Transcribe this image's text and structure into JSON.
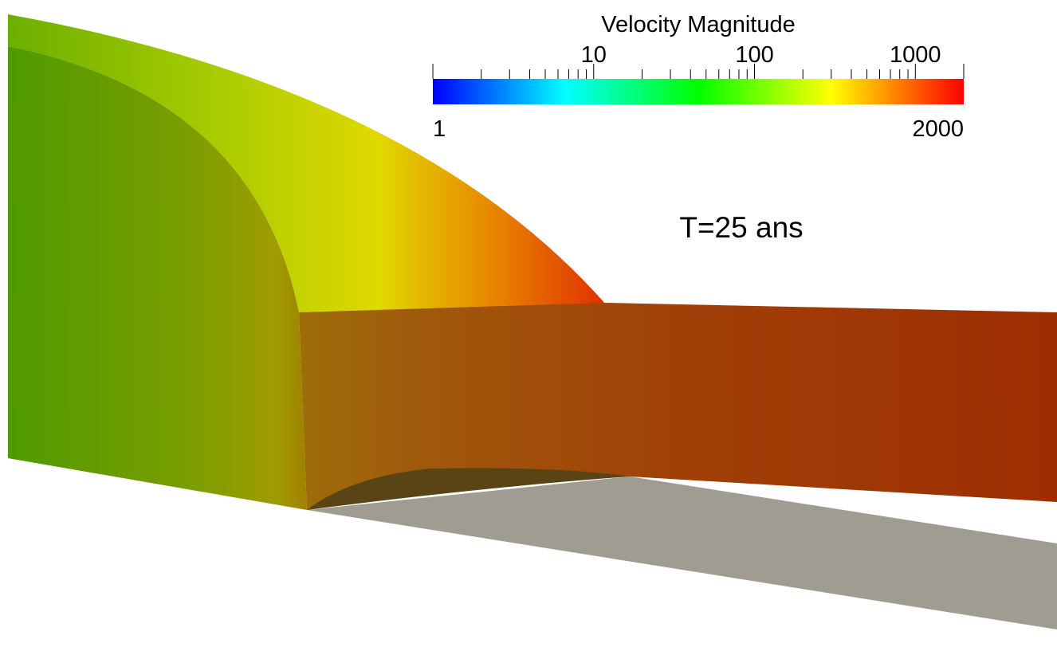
{
  "colorbar": {
    "title": "Velocity Magnitude",
    "range": [
      1,
      2000
    ],
    "ticks": [
      10,
      100,
      1000
    ],
    "log_scale": true,
    "colors": [
      "#0000ff",
      "#00ffff",
      "#00ff00",
      "#ffff00",
      "#ff0000"
    ]
  },
  "annotation": "T=25 ans"
}
